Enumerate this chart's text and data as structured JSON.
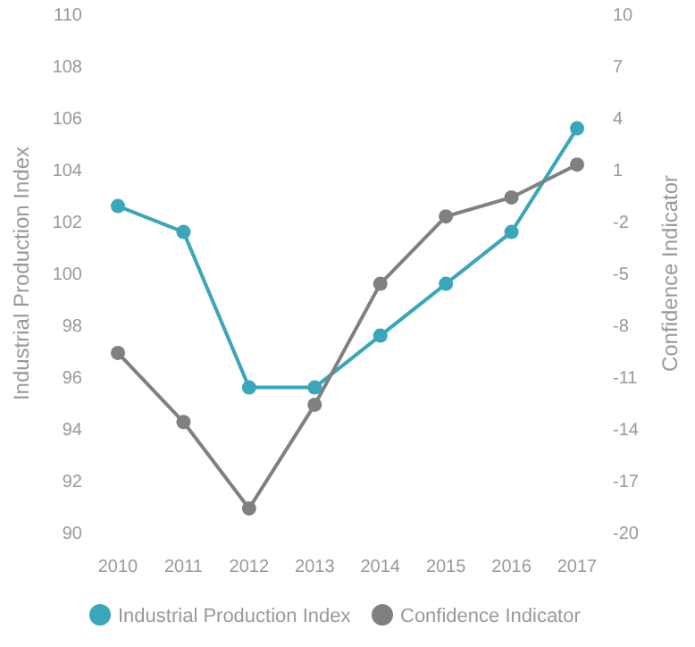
{
  "chart_data": {
    "type": "line",
    "categories": [
      "2010",
      "2011",
      "2012",
      "2013",
      "2014",
      "2015",
      "2016",
      "2017"
    ],
    "ylabel": "Industrial Production Index",
    "y2label": "Confidence Indicator",
    "ylim": [
      90,
      110
    ],
    "yticks": [
      90,
      92,
      94,
      96,
      98,
      100,
      102,
      104,
      106,
      108,
      110
    ],
    "y2lim": [
      -20,
      10
    ],
    "y2ticks": [
      -20,
      -17,
      -14,
      -11,
      -8,
      -5,
      -2,
      1,
      4,
      7,
      10
    ],
    "series": [
      {
        "name": "Industrial Production Index",
        "color": "#3aa6b9",
        "values": [
          102.6,
          101.6,
          95.6,
          95.6,
          97.6,
          99.6,
          101.6,
          105.6
        ]
      },
      {
        "name": "Confidence Indicator",
        "color": "#808080",
        "axis": "y2",
        "values": [
          -9.6,
          -13.6,
          -18.6,
          -12.6,
          -5.6,
          -1.7,
          -0.6,
          1.3
        ]
      }
    ],
    "marker": "circle",
    "grid": false,
    "legend": "bottom"
  }
}
